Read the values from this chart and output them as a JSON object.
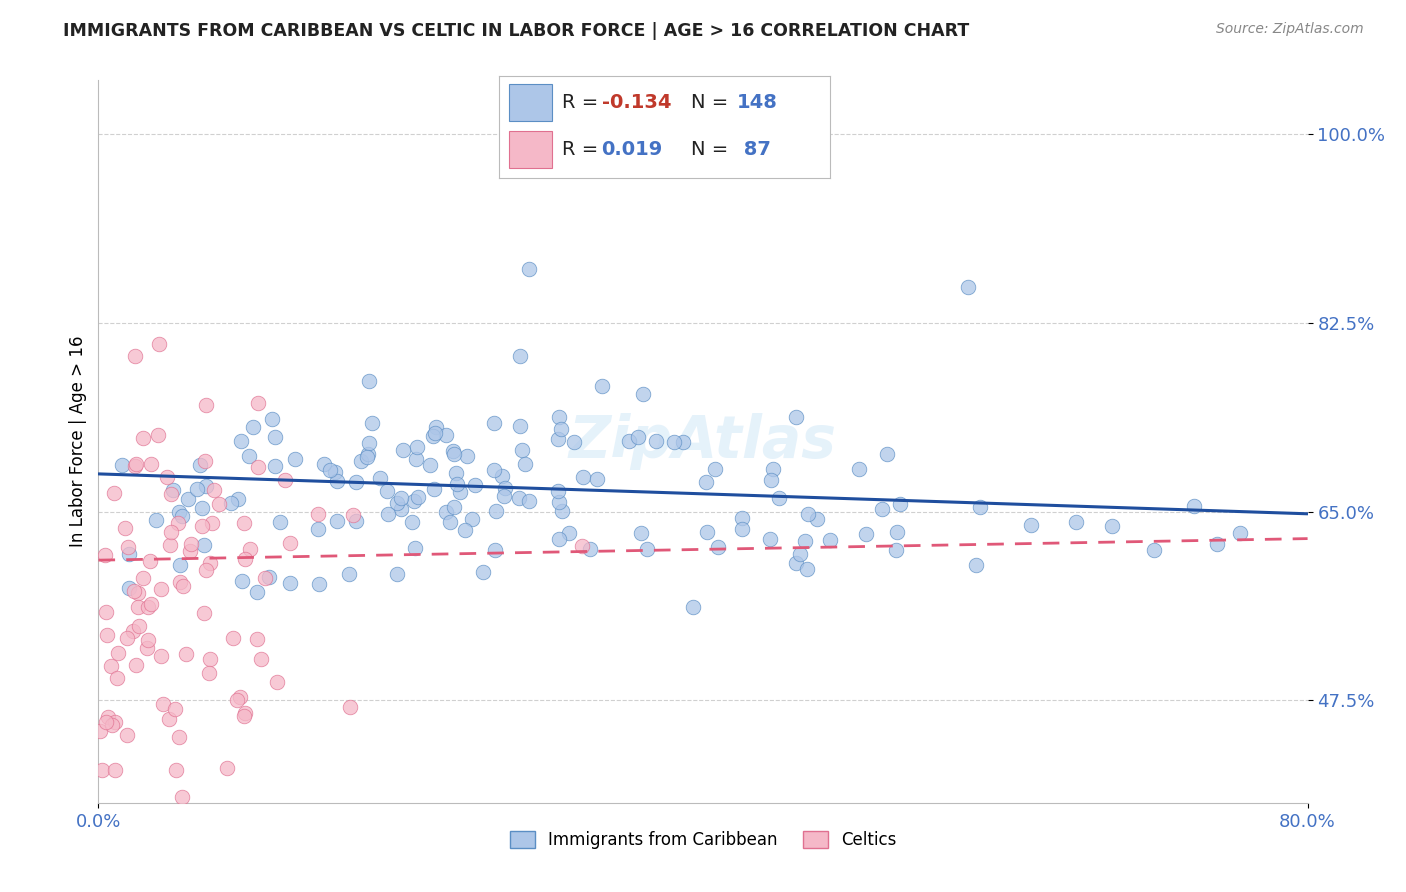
{
  "title": "IMMIGRANTS FROM CARIBBEAN VS CELTIC IN LABOR FORCE | AGE > 16 CORRELATION CHART",
  "source_text": "Source: ZipAtlas.com",
  "ylabel": "In Labor Force | Age > 16",
  "xlim": [
    0.0,
    0.8
  ],
  "ylim": [
    0.38,
    1.05
  ],
  "ytick_positions": [
    0.475,
    0.65,
    0.825,
    1.0
  ],
  "ytick_labels": [
    "47.5%",
    "65.0%",
    "82.5%",
    "100.0%"
  ],
  "blue_R": -0.134,
  "blue_N": 148,
  "pink_R": 0.019,
  "pink_N": 87,
  "blue_color": "#adc6e8",
  "blue_edge_color": "#5b8ec4",
  "blue_line_color": "#1f4e9e",
  "pink_color": "#f5b8c8",
  "pink_edge_color": "#e07090",
  "pink_line_color": "#e05878",
  "grid_color": "#d0d0d0",
  "background_color": "#ffffff",
  "blue_trend": [
    0.685,
    0.648
  ],
  "pink_trend": [
    0.605,
    0.625
  ],
  "watermark": "ZipAtlas",
  "legend_R_label_color": "#4472c4",
  "legend_neg_color": "#c0392b"
}
